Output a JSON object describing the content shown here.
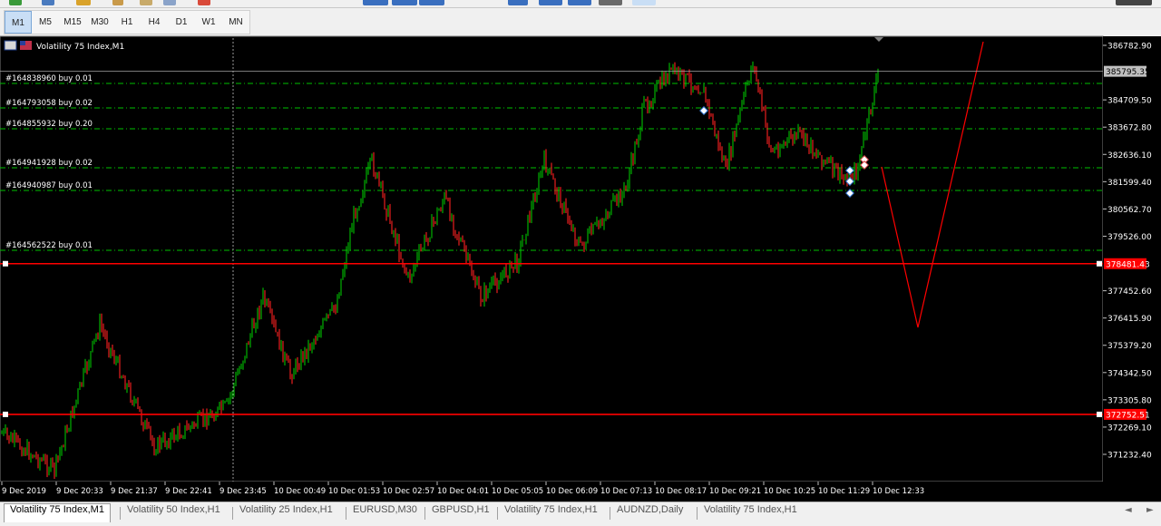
{
  "timeframes": [
    "M1",
    "M5",
    "M15",
    "M30",
    "H1",
    "H4",
    "D1",
    "W1",
    "MN"
  ],
  "active_timeframe": "M1",
  "chart_title": "Volatility 75 Index,M1",
  "current_price": "385795.35",
  "price_ticks": [
    "386782.90",
    "384709.50",
    "383672.80",
    "382636.10",
    "381599.40",
    "380562.70",
    "379526.00",
    "377452.60",
    "376415.90",
    "375379.20",
    "374342.50",
    "373305.80",
    "372269.10",
    "371232.40"
  ],
  "hlines": [
    {
      "price": "378481.43",
      "color": "#ff0000"
    },
    {
      "price": "372752.51",
      "color": "#ff0000"
    }
  ],
  "orders": [
    {
      "label": "#164838960 buy 0.01"
    },
    {
      "label": "#164793058 buy 0.02"
    },
    {
      "label": "#164855932 buy 0.20"
    },
    {
      "label": "#164941928 buy 0.02"
    },
    {
      "label": "#164940987 buy 0.01"
    },
    {
      "label": "#164562522 buy 0.01"
    }
  ],
  "time_labels": [
    "9 Dec 2019",
    "9 Dec 20:33",
    "9 Dec 21:37",
    "9 Dec 22:41",
    "9 Dec 23:45",
    "10 Dec 00:49",
    "10 Dec 01:53",
    "10 Dec 02:57",
    "10 Dec 04:01",
    "10 Dec 05:05",
    "10 Dec 06:09",
    "10 Dec 07:13",
    "10 Dec 08:17",
    "10 Dec 09:21",
    "10 Dec 10:25",
    "10 Dec 11:29",
    "10 Dec 12:33"
  ],
  "tabs": [
    "Volatility 75 Index,M1",
    "Volatility 50 Index,H1",
    "Volatility 25 Index,H1",
    "EURUSD,M30",
    "GBPUSD,H1",
    "Volatility 75 Index,H1",
    "AUDNZD,Daily",
    "Volatility 75 Index,H1"
  ],
  "colors": {
    "bull": "#00c000",
    "bear": "#ff2020",
    "order_line": "#00c000",
    "projection": "#ff0000"
  },
  "icons": {
    "chart_icon": "chart-flag-icon",
    "tab_prev": "◄",
    "tab_next": "►"
  }
}
